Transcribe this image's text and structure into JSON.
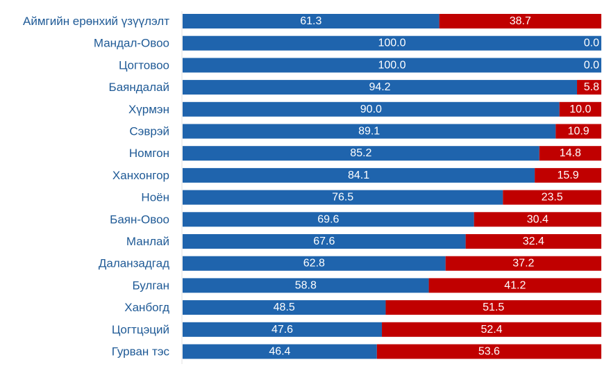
{
  "chart_data": {
    "type": "bar",
    "orientation": "horizontal",
    "stacked": true,
    "normalized": true,
    "xlim": [
      0,
      100
    ],
    "grid": false,
    "legend": "none",
    "categories": [
      "Аймгийн ерөнхий үзүүлэлт",
      "Мандал-Овоо",
      "Цогтовоо",
      "Баяндалай",
      "Хүрмэн",
      "Сэврэй",
      "Номгон",
      "Ханхонгор",
      "Ноён",
      "Баян-Овоо",
      "Манлай",
      "Даланзадгад",
      "Булган",
      "Ханбогд",
      "Цогтцэций",
      "Гурван тэс"
    ],
    "series": [
      {
        "color": "#1f64ad",
        "values": [
          61.3,
          100.0,
          100.0,
          94.2,
          90.0,
          89.1,
          85.2,
          84.1,
          76.5,
          69.6,
          67.6,
          62.8,
          58.8,
          48.5,
          47.6,
          46.4
        ],
        "labels": [
          "61.3",
          "100.0",
          "100.0",
          "94.2",
          "90.0",
          "89.1",
          "85.2",
          "84.1",
          "76.5",
          "69.6",
          "67.6",
          "62.8",
          "58.8",
          "48.5",
          "47.6",
          "46.4"
        ]
      },
      {
        "color": "#c00000",
        "values": [
          38.7,
          0.0,
          0.0,
          5.8,
          10.0,
          10.9,
          14.8,
          15.9,
          23.5,
          30.4,
          32.4,
          37.2,
          41.2,
          51.5,
          52.4,
          53.6
        ],
        "labels": [
          "38.7",
          "0.0",
          "0.0",
          "5.8",
          "10.0",
          "10.9",
          "14.8",
          "15.9",
          "23.5",
          "30.4",
          "32.4",
          "37.2",
          "41.2",
          "51.5",
          "52.4",
          "53.6"
        ]
      }
    ]
  }
}
